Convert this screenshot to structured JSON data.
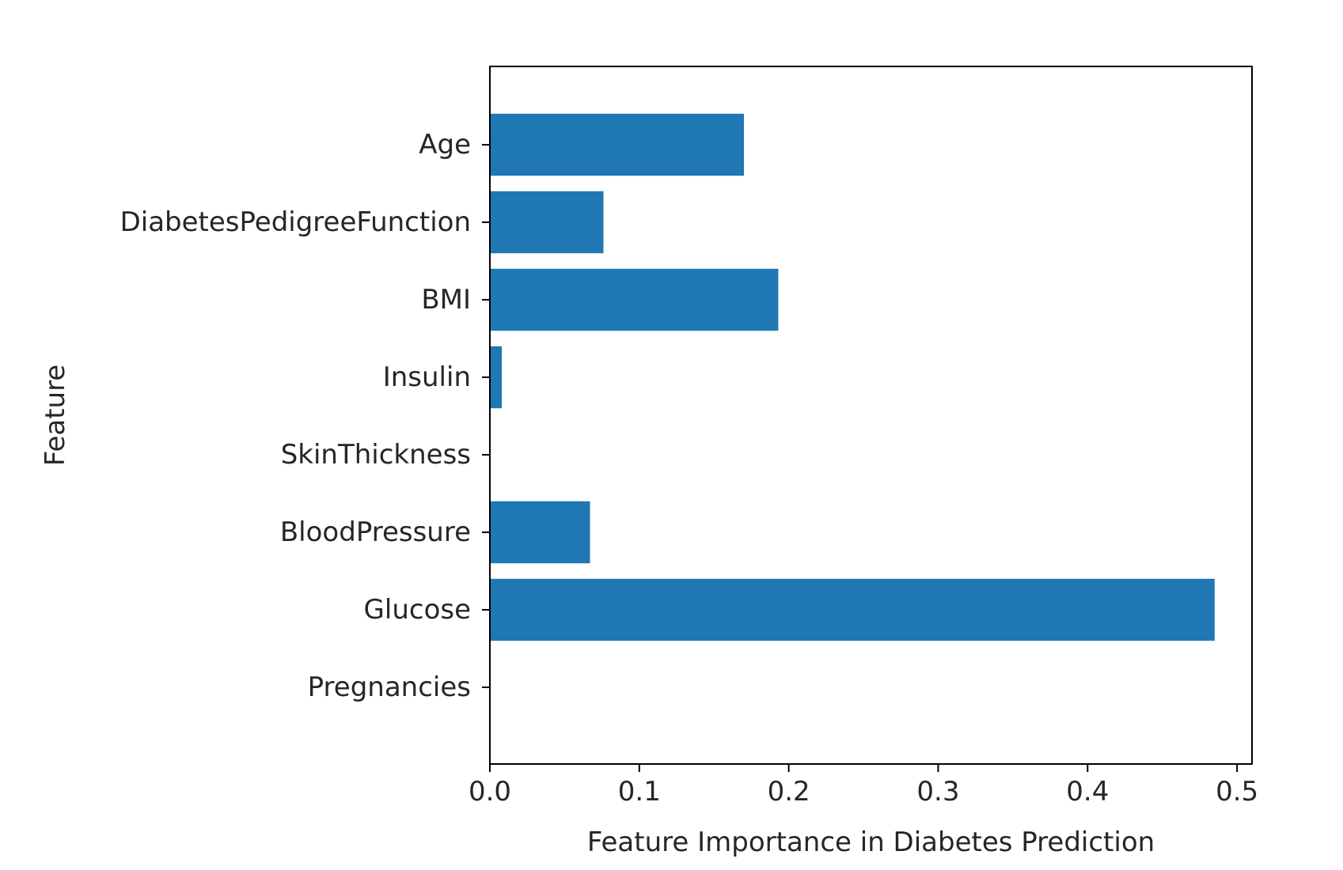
{
  "chart_data": {
    "type": "bar",
    "orientation": "horizontal",
    "categories": [
      "Pregnancies",
      "Glucose",
      "BloodPressure",
      "SkinThickness",
      "Insulin",
      "BMI",
      "DiabetesPedigreeFunction",
      "Age"
    ],
    "values": [
      0.0,
      0.485,
      0.067,
      0.0,
      0.008,
      0.193,
      0.076,
      0.17
    ],
    "xlabel": "Feature Importance in Diabetes Prediction",
    "ylabel": "Feature",
    "xlim": [
      0.0,
      0.51
    ],
    "xticks": [
      0.0,
      0.1,
      0.2,
      0.3,
      0.4,
      0.5
    ],
    "xtick_labels": [
      "0.0",
      "0.1",
      "0.2",
      "0.3",
      "0.4",
      "0.5"
    ],
    "bar_color": "#1f77b4",
    "grid": false
  }
}
